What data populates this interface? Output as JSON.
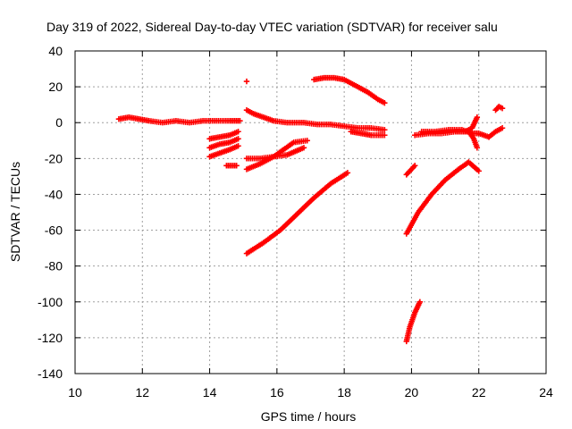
{
  "chart_data": {
    "type": "scatter",
    "title": "Day 319 of 2022, Sidereal Day-to-day VTEC variation (SDTVAR) for receiver salu",
    "xlabel": "GPS time / hours",
    "ylabel": "SDTVAR / TECUs",
    "xlim": [
      10,
      24
    ],
    "ylim": [
      -140,
      40
    ],
    "xticks": [
      "10",
      "12",
      "14",
      "16",
      "18",
      "20",
      "22",
      "24"
    ],
    "yticks": [
      "40",
      "20",
      "0",
      "-20",
      "-40",
      "-60",
      "-80",
      "-100",
      "-120",
      "-140"
    ],
    "grid": true,
    "marker": "plus",
    "color": "#ff0000",
    "segments": [
      {
        "x": [
          11.3,
          11.6,
          11.9,
          12.2,
          12.6,
          13.0,
          13.4,
          13.8,
          14.2,
          14.6,
          14.9
        ],
        "y": [
          2,
          3,
          2,
          1,
          0,
          1,
          0,
          1,
          1,
          1,
          1
        ]
      },
      {
        "x": [
          14.0,
          14.3,
          14.6,
          14.85
        ],
        "y": [
          -9,
          -8,
          -7,
          -5
        ]
      },
      {
        "x": [
          14.0,
          14.3,
          14.6,
          14.85
        ],
        "y": [
          -14,
          -12,
          -11,
          -9
        ]
      },
      {
        "x": [
          14.0,
          14.3,
          14.6,
          14.85
        ],
        "y": [
          -19,
          -17,
          -15,
          -13
        ]
      },
      {
        "x": [
          14.5,
          14.7,
          14.8
        ],
        "y": [
          -24,
          -24,
          -24
        ]
      },
      {
        "x": [
          15.1
        ],
        "y": [
          23
        ]
      },
      {
        "x": [
          15.1,
          15.3,
          15.6,
          15.9,
          16.3,
          16.8,
          17.2,
          17.6,
          18.0,
          18.4,
          18.8,
          19.2
        ],
        "y": [
          7,
          5,
          3,
          1,
          0,
          0,
          -1,
          -1,
          -2,
          -3,
          -3,
          -4
        ]
      },
      {
        "x": [
          18.2,
          18.5,
          18.8,
          19.2
        ],
        "y": [
          -5,
          -6,
          -7,
          -7
        ]
      },
      {
        "x": [
          15.1,
          15.5,
          15.9,
          16.3,
          16.8
        ],
        "y": [
          -20,
          -20,
          -19,
          -18,
          -14
        ]
      },
      {
        "x": [
          15.1,
          15.5,
          15.9,
          16.2,
          16.5,
          16.9
        ],
        "y": [
          -26,
          -23,
          -19,
          -15,
          -11,
          -10
        ]
      },
      {
        "x": [
          15.1,
          15.6,
          16.1,
          16.6,
          17.1,
          17.6,
          18.1
        ],
        "y": [
          -73,
          -67,
          -60,
          -51,
          -42,
          -34,
          -28
        ]
      },
      {
        "x": [
          17.1,
          17.4,
          17.7,
          18.0,
          18.3,
          18.7,
          19.0,
          19.2
        ],
        "y": [
          24,
          25,
          25,
          24,
          21,
          17,
          13,
          11
        ]
      },
      {
        "x": [
          19.85,
          19.95,
          20.1
        ],
        "y": [
          -29,
          -27,
          -24
        ]
      },
      {
        "x": [
          19.85,
          19.95,
          20.1,
          20.25
        ],
        "y": [
          -122,
          -114,
          -106,
          -100
        ]
      },
      {
        "x": [
          19.85,
          20.2,
          20.6,
          21.0,
          21.4,
          21.7,
          22.0
        ],
        "y": [
          -62,
          -50,
          -40,
          -32,
          -26,
          -22,
          -27
        ]
      },
      {
        "x": [
          20.1,
          20.5,
          20.9,
          21.3,
          21.6,
          21.8,
          21.95
        ],
        "y": [
          -7,
          -6,
          -6,
          -5,
          -5,
          -3,
          3
        ]
      },
      {
        "x": [
          20.3,
          20.7,
          21.1,
          21.5,
          21.8,
          22.0,
          22.3
        ],
        "y": [
          -5,
          -5,
          -4,
          -4,
          -6,
          -6,
          -8
        ]
      },
      {
        "x": [
          21.7,
          21.85,
          21.95
        ],
        "y": [
          -5,
          -9,
          -14
        ]
      },
      {
        "x": [
          22.3,
          22.5,
          22.7
        ],
        "y": [
          -8,
          -5,
          -3
        ]
      },
      {
        "x": [
          22.5,
          22.6,
          22.7
        ],
        "y": [
          7,
          9,
          8
        ]
      }
    ]
  }
}
